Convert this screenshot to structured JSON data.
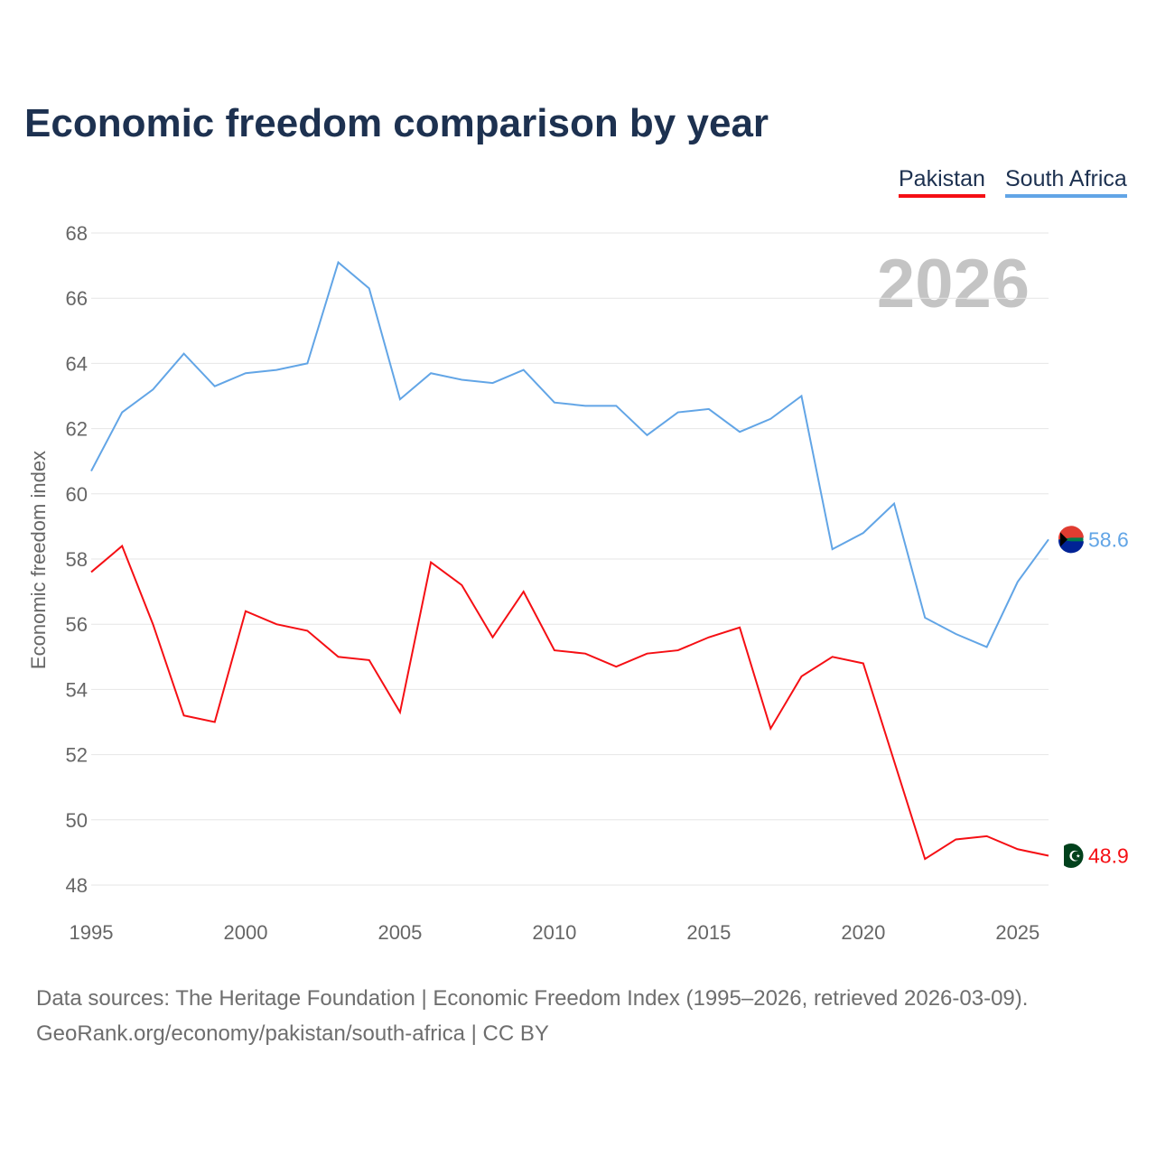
{
  "chart_data": {
    "type": "line",
    "title": "Economic freedom comparison by year",
    "xlabel": "",
    "ylabel": "Economic freedom index",
    "xlim": [
      1995,
      2026
    ],
    "ylim": [
      48,
      68
    ],
    "yticks": [
      48,
      50,
      52,
      54,
      56,
      58,
      60,
      62,
      64,
      66,
      68
    ],
    "xticks": [
      1995,
      2000,
      2005,
      2010,
      2015,
      2020,
      2025
    ],
    "year_watermark": "2026",
    "legend_position": "top-right",
    "x": [
      1995,
      1996,
      1997,
      1998,
      1999,
      2000,
      2001,
      2002,
      2003,
      2004,
      2005,
      2006,
      2007,
      2008,
      2009,
      2010,
      2011,
      2012,
      2013,
      2014,
      2015,
      2016,
      2017,
      2018,
      2019,
      2020,
      2021,
      2022,
      2023,
      2024,
      2025,
      2026
    ],
    "series": [
      {
        "name": "Pakistan",
        "color": "#f50f14",
        "end_label": "48.9",
        "values": [
          57.6,
          58.4,
          56.0,
          53.2,
          53.0,
          56.4,
          56.0,
          55.8,
          55.0,
          54.9,
          53.3,
          57.9,
          57.2,
          55.6,
          57.0,
          55.2,
          55.1,
          54.7,
          55.1,
          55.2,
          55.6,
          55.9,
          52.8,
          54.4,
          55.0,
          54.8,
          51.8,
          48.8,
          49.4,
          49.5,
          49.1,
          48.9
        ]
      },
      {
        "name": "South Africa",
        "color": "#62a5e6",
        "end_label": "58.6",
        "values": [
          60.7,
          62.5,
          63.2,
          64.3,
          63.3,
          63.7,
          63.8,
          64.0,
          67.1,
          66.3,
          62.9,
          63.7,
          63.5,
          63.4,
          63.8,
          62.8,
          62.7,
          62.7,
          61.8,
          62.5,
          62.6,
          61.9,
          62.3,
          63.0,
          58.3,
          58.8,
          59.7,
          56.2,
          55.7,
          55.3,
          57.3,
          58.6
        ]
      }
    ]
  },
  "footer": {
    "line1": "Data sources: The Heritage Foundation | Economic Freedom Index (1995–2026, retrieved 2026-03-09).",
    "line2": "GeoRank.org/economy/pakistan/south-africa | CC BY"
  }
}
